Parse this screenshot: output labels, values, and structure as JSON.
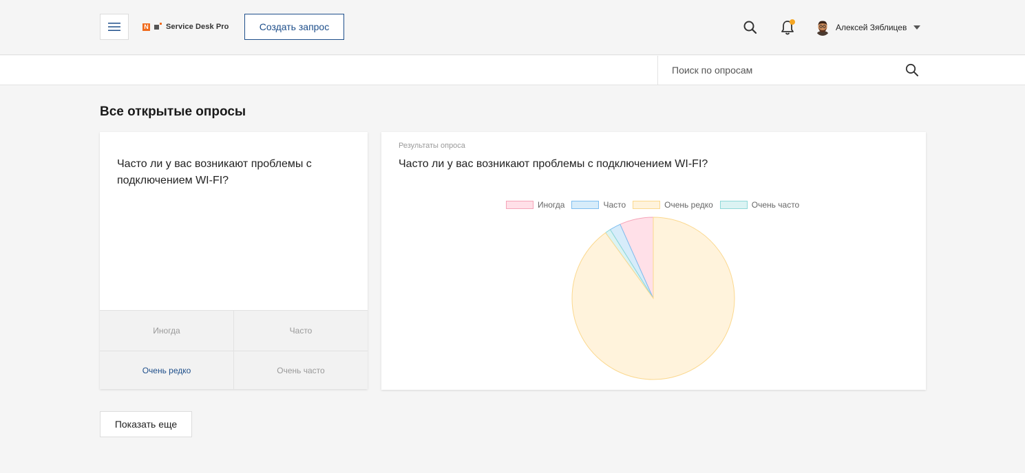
{
  "header": {
    "brand": "Service Desk Pro",
    "brand_letter": "N",
    "create_label": "Создать запрос",
    "user_name": "Алексей Зяблицев",
    "notification_dot_color": "#f5a623",
    "accent_color": "#1d4e8a"
  },
  "search": {
    "placeholder": "Поиск по опросам"
  },
  "page": {
    "title": "Все открытые опросы",
    "show_more_label": "Показать еще"
  },
  "poll": {
    "question": "Часто ли у вас возникают проблемы с подключением WI-FI?",
    "options": [
      "Иногда",
      "Часто",
      "Очень редко",
      "Очень часто"
    ],
    "selected_option": "Очень редко"
  },
  "results": {
    "label": "Результаты опроса",
    "question": "Часто ли у вас возникают проблемы с подключением WI-FI?"
  },
  "chart_data": {
    "type": "pie",
    "categories": [
      "Иногда",
      "Часто",
      "Очень редко",
      "Очень часто"
    ],
    "values": [
      6.7,
      2.2,
      90.0,
      1.1
    ],
    "colors": {
      "fill": [
        "#ffe0e8",
        "#d7ecfa",
        "#fff3dc",
        "#dbf3f3"
      ],
      "stroke": [
        "#f5a4b8",
        "#7cbdf0",
        "#fbd88e",
        "#8fd8d8"
      ]
    },
    "legend_position": "top"
  }
}
